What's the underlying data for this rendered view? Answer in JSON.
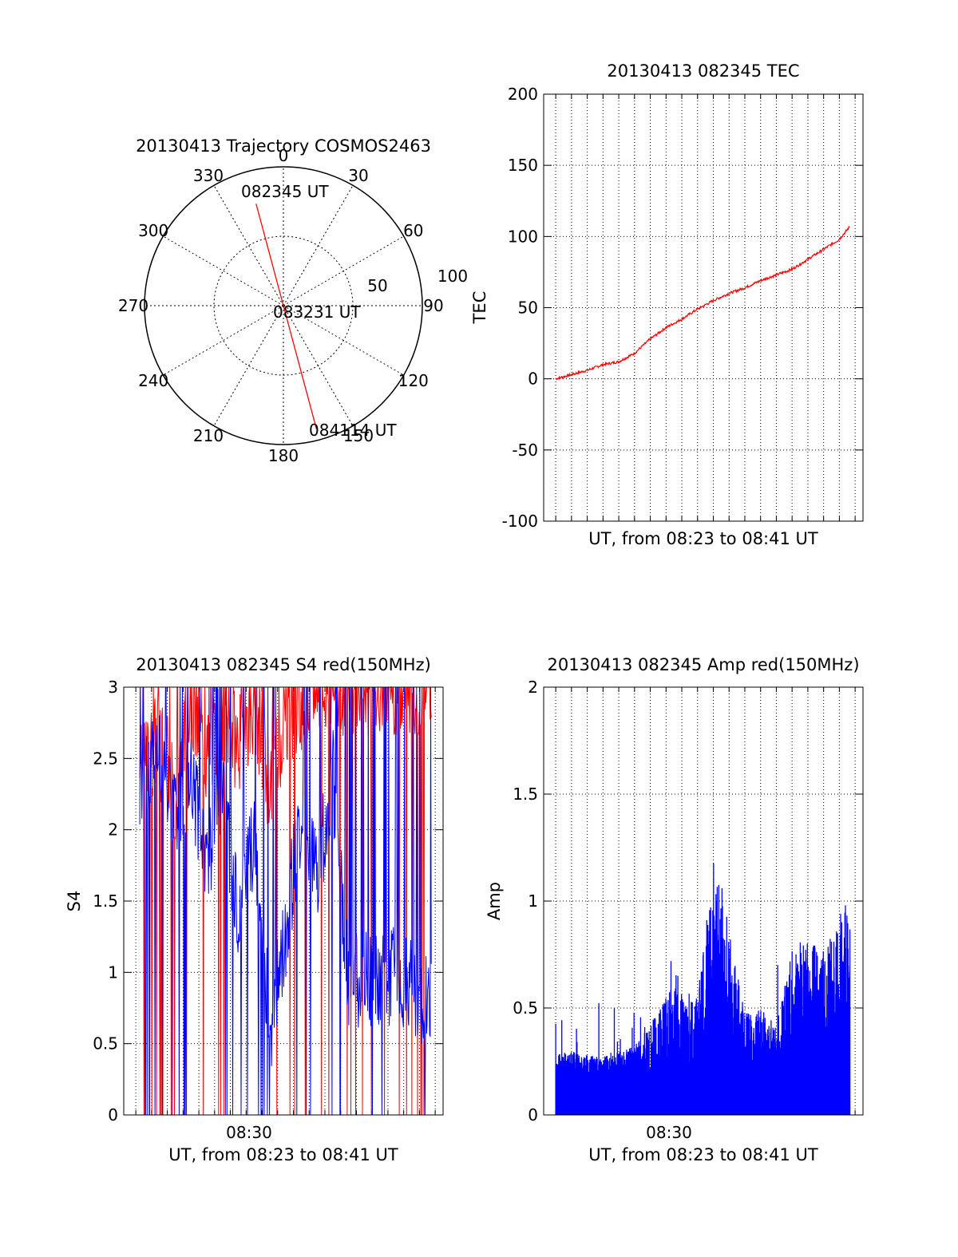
{
  "chart_data": [
    {
      "type": "polar",
      "title": "20130413 Trajectory COSMOS2463",
      "azimuth_ticks": [
        "0",
        "30",
        "60",
        "90",
        "120",
        "150",
        "180",
        "210",
        "240",
        "270",
        "300",
        "330"
      ],
      "radius_ticks": [
        "50",
        "100"
      ],
      "grid": true,
      "trajectory": {
        "color": "#ff0000",
        "points": [
          {
            "az": 345,
            "r": 76,
            "label": "082345 UT"
          },
          {
            "az": 0,
            "r": 0,
            "label": "083231 UT"
          },
          {
            "az": 165,
            "r": 92,
            "label": "084114 UT"
          }
        ]
      }
    },
    {
      "type": "line",
      "title": "20130413 082345 TEC",
      "xlabel": "UT, from 08:23 to 08:41 UT",
      "ylabel": "TEC",
      "xlim": [
        "08:22:14",
        "08:42:30"
      ],
      "ylim": [
        -100,
        200
      ],
      "yticks": [
        "-100",
        "-50",
        "0",
        "50",
        "100",
        "150",
        "200"
      ],
      "grid": true,
      "series": [
        {
          "color": "#ff0000",
          "x": [
            "08:23:00",
            "08:24:00",
            "08:25:00",
            "08:26:00",
            "08:27:00",
            "08:28:00",
            "08:29:00",
            "08:30:00",
            "08:31:00",
            "08:32:00",
            "08:33:00",
            "08:34:00",
            "08:35:00",
            "08:36:00",
            "08:37:00",
            "08:38:00",
            "08:39:00",
            "08:40:00",
            "08:41:00",
            "08:41:40"
          ],
          "values": [
            0,
            3,
            6,
            10,
            12,
            18,
            28,
            36,
            42,
            49,
            55,
            60,
            64,
            69,
            73,
            77,
            84,
            91,
            98,
            107
          ]
        }
      ]
    },
    {
      "type": "line",
      "title": "20130413 082345 S4 red(150MHz)",
      "xlabel": "UT, from 08:23 to 08:41 UT",
      "ylabel": "S4",
      "xlim": [
        "08:22:14",
        "08:42:30"
      ],
      "ylim": [
        0,
        3
      ],
      "yticks": [
        "0",
        "0.5",
        "1",
        "1.5",
        "2",
        "2.5",
        "3"
      ],
      "xticks": [
        "08:30"
      ],
      "grid": true,
      "series": [
        {
          "color": "#ff0000",
          "x": [
            "08:23:30",
            "08:24:30",
            "08:25:30",
            "08:26:30",
            "08:27:30",
            "08:28:30",
            "08:29:30",
            "08:30:30",
            "08:31:30",
            "08:32:30",
            "08:33:30",
            "08:34:30",
            "08:35:30",
            "08:36:30",
            "08:37:30",
            "08:38:30",
            "08:39:30",
            "08:40:30",
            "08:41:30"
          ],
          "values": [
            2.4,
            2.7,
            2.2,
            2.9,
            2.5,
            2.8,
            2.6,
            2.9,
            2.3,
            2.8,
            2.9,
            3.0,
            3.0,
            3.0,
            3.0,
            3.0,
            3.0,
            3.0,
            3.0
          ]
        },
        {
          "color": "#0000ff",
          "x": [
            "08:23:30",
            "08:24:30",
            "08:25:30",
            "08:26:30",
            "08:27:30",
            "08:28:30",
            "08:29:30",
            "08:30:30",
            "08:31:30",
            "08:32:30",
            "08:33:30",
            "08:34:30",
            "08:35:30",
            "08:36:30",
            "08:37:30",
            "08:38:30",
            "08:39:30",
            "08:40:30",
            "08:41:30"
          ],
          "values": [
            2.3,
            2.6,
            2.1,
            2.4,
            1.8,
            2.2,
            1.4,
            1.9,
            0.6,
            1.3,
            2.1,
            1.6,
            2.4,
            0.9,
            1.0,
            0.9,
            1.0,
            0.9,
            0.8
          ]
        }
      ]
    },
    {
      "type": "bar",
      "title": "20130413 082345 Amp red(150MHz)",
      "xlabel": "UT, from 08:23 to 08:41 UT",
      "ylabel": "Amp",
      "xlim": [
        "08:22:14",
        "08:42:30"
      ],
      "ylim": [
        0,
        2
      ],
      "yticks": [
        "0",
        "0.5",
        "1",
        "1.5",
        "2"
      ],
      "xticks": [
        "08:30"
      ],
      "grid": true,
      "series": [
        {
          "color": "#0000ff",
          "x": [
            "08:23:00",
            "08:24:00",
            "08:25:00",
            "08:26:00",
            "08:27:00",
            "08:28:00",
            "08:29:00",
            "08:30:00",
            "08:31:00",
            "08:32:00",
            "08:33:00",
            "08:34:00",
            "08:35:00",
            "08:36:00",
            "08:37:00",
            "08:38:00",
            "08:39:00",
            "08:40:00",
            "08:41:00",
            "08:41:40"
          ],
          "values": [
            0.28,
            0.3,
            0.28,
            0.27,
            0.3,
            0.32,
            0.45,
            0.58,
            0.6,
            0.55,
            1.2,
            0.95,
            0.48,
            0.5,
            0.42,
            0.8,
            0.85,
            0.75,
            0.95,
            1.02
          ]
        }
      ]
    }
  ]
}
